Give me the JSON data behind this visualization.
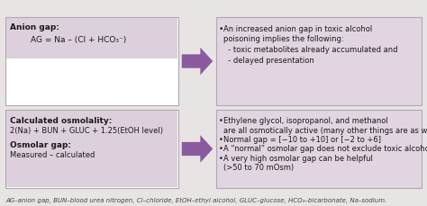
{
  "bg_color": "#e8e4e4",
  "box_white_bg": "#ffffff",
  "box_purple_bg": "#e0d5e0",
  "strip_purple_bg": "#ddd0dd",
  "box_border": "#b0a8b0",
  "arrow_color": "#8b5a9e",
  "text_dark": "#1a1a1a",
  "footer_color": "#444444",
  "top_left_title": "Anion gap:",
  "top_left_formula": "AG = Na – (Cl + HCO₃⁻)",
  "top_right_line1": "An increased anion gap in toxic alcohol",
  "top_right_line2": "poisoning implies the following:",
  "top_right_line3": "  - toxic metabolites already accumulated and",
  "top_right_line4": "  - delayed presentation",
  "bot_left_title1": "Calculated osmolality:",
  "bot_left_formula1": "2(Na) + BUN + GLUC + 1.25(EtOH level)",
  "bot_left_title2": "Osmolar gap:",
  "bot_left_formula2": "Measured – calculated",
  "bot_right_bullet1a": "Ethylene glycol, isopropanol, and methanol",
  "bot_right_bullet1b": "are all osmotically active (many other things are as well)",
  "bot_right_bullet2": "Normal gap = [−10 to +10] or [−2 to +6]",
  "bot_right_bullet3": "A “normal” osmolar gap does not exclude toxic alcohol",
  "bot_right_bullet4a": "A very high osmolar gap can be helpful",
  "bot_right_bullet4b": "(>50 to 70 mOsm)",
  "footer": "AG–anion gap, BUN–blood urea nitrogen, Cl–chloride, EtOH–ethyl alcohol, GLUC–glucose, HCO₃–bicarbonate, Na–sodium."
}
